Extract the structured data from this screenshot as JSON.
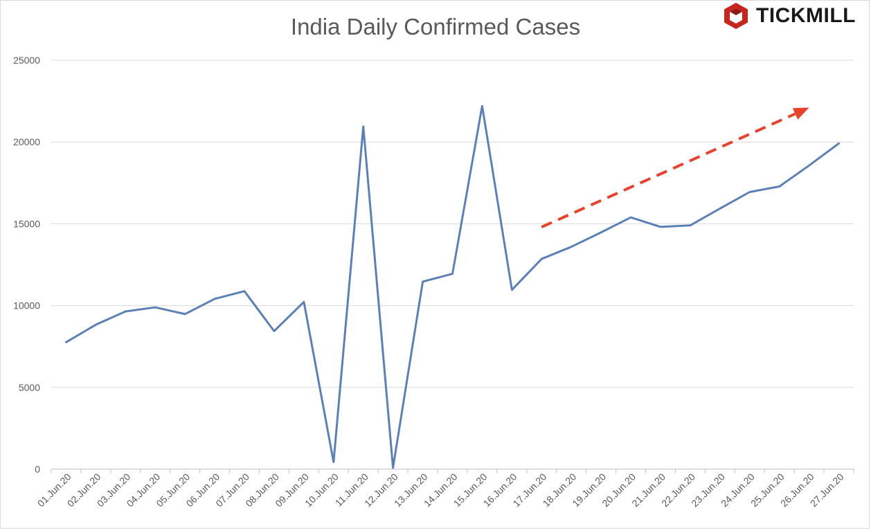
{
  "chart_data": {
    "type": "line",
    "title": "India Daily Confirmed Cases",
    "xlabel": "",
    "ylabel": "",
    "ylim": [
      0,
      25000
    ],
    "yticks": [
      "0",
      "5000",
      "10000",
      "15000",
      "20000",
      "25000"
    ],
    "grid": "horizontal",
    "categories": [
      "01.Jun.20",
      "02.Jun.20",
      "03.Jun.20",
      "04.Jun.20",
      "05.Jun.20",
      "06.Jun.20",
      "07.Jun.20",
      "08.Jun.20",
      "09.Jun.20",
      "10.Jun.20",
      "11.Jun.20",
      "12.Jun.20",
      "13.Jun.20",
      "14.Jun.20",
      "15.Jun.20",
      "16.Jun.20",
      "17.Jun.20",
      "18.Jun.20",
      "19.Jun.20",
      "20.Jun.20",
      "21.Jun.20",
      "22.Jun.20",
      "23.Jun.20",
      "24.Jun.20",
      "25.Jun.20",
      "26.Jun.20",
      "27.Jun.20"
    ],
    "series": [
      {
        "color": "#5b80b8",
        "values": [
          7760,
          8830,
          9640,
          9890,
          9480,
          10410,
          10880,
          8440,
          10220,
          430,
          20950,
          80,
          11460,
          11940,
          22200,
          10960,
          12850,
          13590,
          14470,
          15390,
          14810,
          14900,
          15930,
          16940,
          17280,
          18560,
          19910
        ]
      }
    ],
    "annotations": [
      {
        "type": "trend-arrow",
        "style": "dashed",
        "color": "#e8412c",
        "from": {
          "x": "17.Jun.20",
          "y": 14800
        },
        "to": {
          "x": "26.Jun.20",
          "y": 22100
        }
      }
    ]
  },
  "logo": {
    "text": "TICKMILL",
    "color": "#c8251f"
  }
}
